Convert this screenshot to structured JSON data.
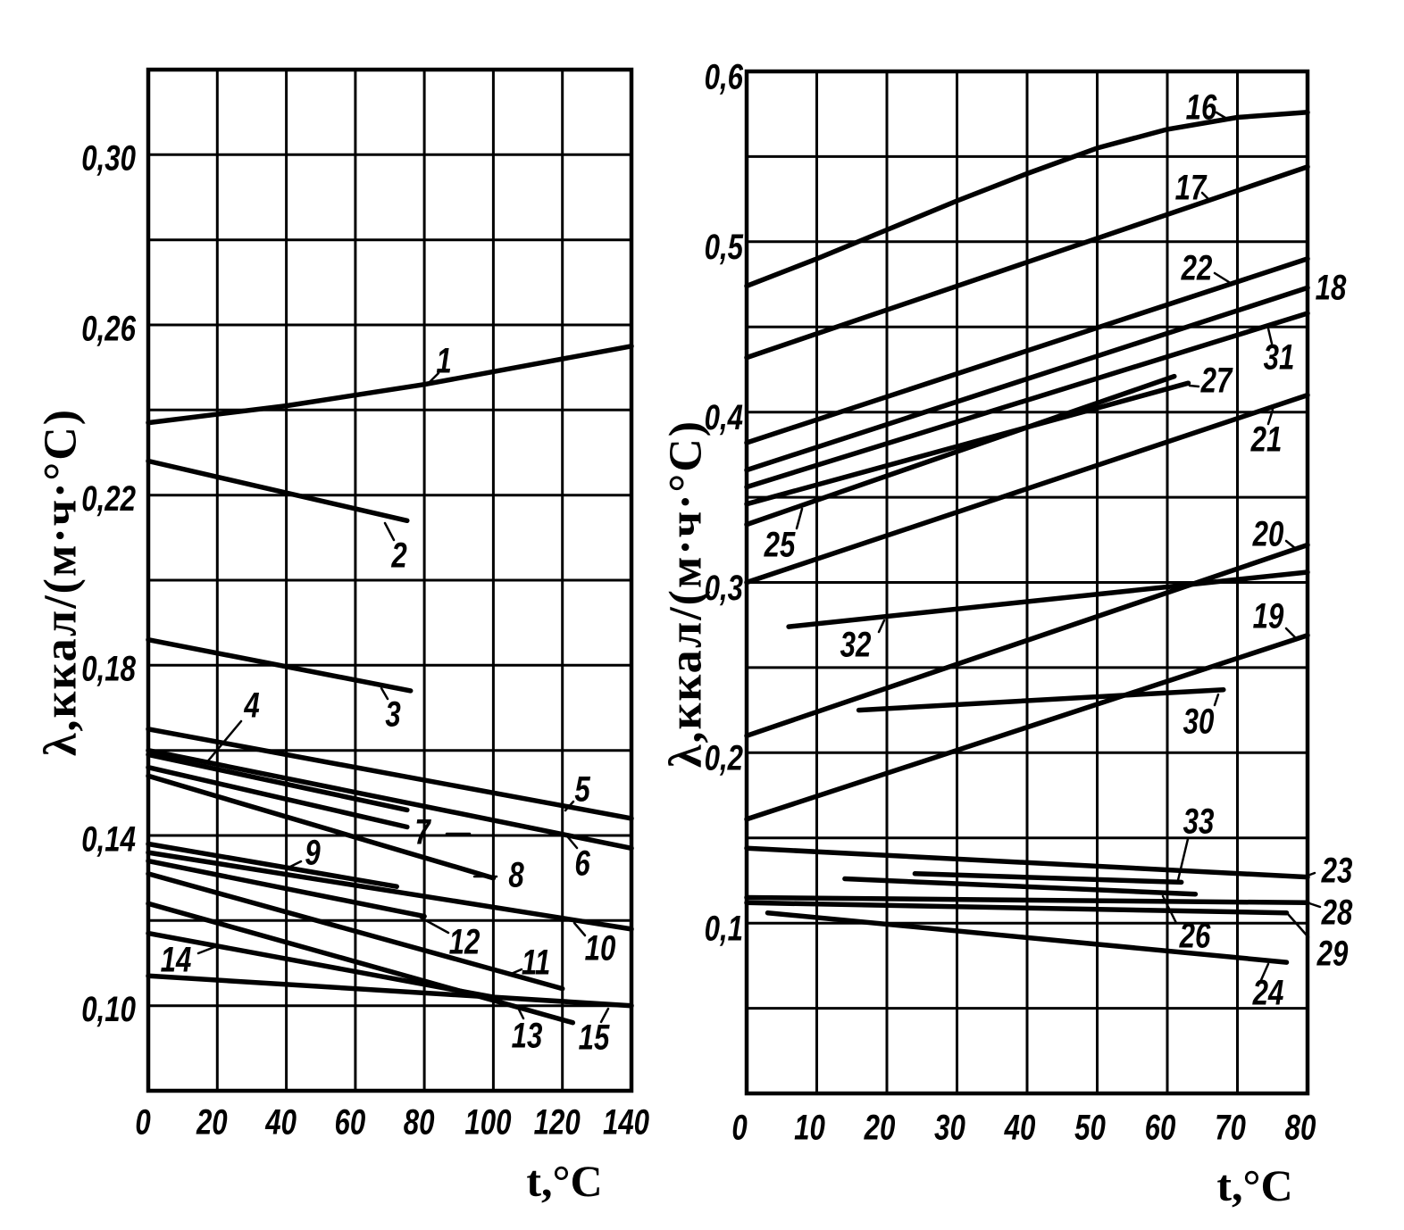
{
  "chart_data": [
    {
      "type": "line",
      "xlabel": "t,°C",
      "ylabel": "λ,ккал/(м·ч·°С)",
      "xlim": [
        0,
        140
      ],
      "ylim": [
        0.08,
        0.32
      ],
      "grid": true,
      "x_ticks": [
        0,
        20,
        40,
        60,
        80,
        100,
        120,
        140
      ],
      "x_tick_labels": [
        "0",
        "20",
        "40",
        "60",
        "80",
        "100",
        "120",
        "140"
      ],
      "y_ticks": [
        0.1,
        0.14,
        0.18,
        0.22,
        0.26,
        0.3
      ],
      "y_tick_labels": [
        "0,10",
        "0,14",
        "0,18",
        "0,22",
        "0,26",
        "0,30"
      ],
      "series": [
        {
          "name": "1",
          "x": [
            0,
            40,
            80,
            140
          ],
          "y": [
            0.237,
            0.241,
            0.246,
            0.255
          ]
        },
        {
          "name": "2",
          "x": [
            0,
            75
          ],
          "y": [
            0.228,
            0.214
          ]
        },
        {
          "name": "3",
          "x": [
            0,
            76
          ],
          "y": [
            0.186,
            0.174
          ]
        },
        {
          "name": "4",
          "x": [
            0,
            75
          ],
          "y": [
            0.159,
            0.146
          ]
        },
        {
          "name": "5",
          "x": [
            0,
            140
          ],
          "y": [
            0.165,
            0.144
          ]
        },
        {
          "name": "6",
          "x": [
            0,
            140
          ],
          "y": [
            0.16,
            0.137
          ]
        },
        {
          "name": "7",
          "x": [
            0,
            75
          ],
          "y": [
            0.156,
            0.142
          ]
        },
        {
          "name": "8",
          "x": [
            0,
            100
          ],
          "y": [
            0.154,
            0.13
          ]
        },
        {
          "name": "9",
          "x": [
            0,
            72
          ],
          "y": [
            0.138,
            0.128
          ]
        },
        {
          "name": "10",
          "x": [
            0,
            140
          ],
          "y": [
            0.136,
            0.118
          ]
        },
        {
          "name": "11",
          "x": [
            0,
            120
          ],
          "y": [
            0.131,
            0.104
          ]
        },
        {
          "name": "12",
          "x": [
            0,
            80
          ],
          "y": [
            0.134,
            0.121
          ]
        },
        {
          "name": "13",
          "x": [
            0,
            123
          ],
          "y": [
            0.124,
            0.096
          ]
        },
        {
          "name": "14",
          "x": [
            0,
            100
          ],
          "y": [
            0.117,
            0.102
          ]
        },
        {
          "name": "15",
          "x": [
            0,
            140
          ],
          "y": [
            0.107,
            0.1
          ]
        }
      ]
    },
    {
      "type": "line",
      "xlabel": "t,°C",
      "ylabel": "λ,ккал/(м·ч·°С)",
      "xlim": [
        0,
        80
      ],
      "ylim": [
        0,
        0.6
      ],
      "grid": true,
      "x_ticks": [
        0,
        10,
        20,
        30,
        40,
        50,
        60,
        70,
        80
      ],
      "x_tick_labels": [
        "0",
        "10",
        "20",
        "30",
        "40",
        "50",
        "60",
        "70",
        "80"
      ],
      "y_ticks": [
        0.1,
        0.2,
        0.3,
        0.4,
        0.5,
        0.6
      ],
      "y_tick_labels": [
        "0,1",
        "0,2",
        "0,3",
        "0,4",
        "0,5",
        "0,6"
      ],
      "series": [
        {
          "name": "16",
          "x": [
            0,
            10,
            20,
            30,
            40,
            50,
            60,
            70,
            80
          ],
          "y": [
            0.474,
            0.49,
            0.507,
            0.524,
            0.54,
            0.555,
            0.566,
            0.573,
            0.576
          ]
        },
        {
          "name": "17",
          "x": [
            0,
            80
          ],
          "y": [
            0.432,
            0.544
          ]
        },
        {
          "name": "18",
          "x": [
            0,
            80
          ],
          "y": [
            0.366,
            0.473
          ]
        },
        {
          "name": "19",
          "x": [
            0,
            80
          ],
          "y": [
            0.161,
            0.269
          ]
        },
        {
          "name": "20",
          "x": [
            0,
            80
          ],
          "y": [
            0.21,
            0.322
          ]
        },
        {
          "name": "21",
          "x": [
            0,
            80
          ],
          "y": [
            0.3,
            0.41
          ]
        },
        {
          "name": "22",
          "x": [
            0,
            80
          ],
          "y": [
            0.382,
            0.49
          ]
        },
        {
          "name": "23",
          "x": [
            0,
            80
          ],
          "y": [
            0.144,
            0.127
          ]
        },
        {
          "name": "24",
          "x": [
            3,
            77
          ],
          "y": [
            0.106,
            0.077
          ]
        },
        {
          "name": "25",
          "x": [
            0,
            61
          ],
          "y": [
            0.334,
            0.421
          ]
        },
        {
          "name": "26",
          "x": [
            14,
            64
          ],
          "y": [
            0.126,
            0.117
          ]
        },
        {
          "name": "27",
          "x": [
            0,
            63
          ],
          "y": [
            0.346,
            0.417
          ]
        },
        {
          "name": "28",
          "x": [
            0,
            80
          ],
          "y": [
            0.115,
            0.112
          ]
        },
        {
          "name": "29",
          "x": [
            0,
            77
          ],
          "y": [
            0.112,
            0.106
          ]
        },
        {
          "name": "30",
          "x": [
            16,
            68
          ],
          "y": [
            0.225,
            0.237
          ]
        },
        {
          "name": "31",
          "x": [
            0,
            80
          ],
          "y": [
            0.356,
            0.458
          ]
        },
        {
          "name": "32",
          "x": [
            6,
            80
          ],
          "y": [
            0.274,
            0.306
          ]
        },
        {
          "name": "33",
          "x": [
            24,
            62
          ],
          "y": [
            0.129,
            0.124
          ]
        }
      ]
    }
  ]
}
